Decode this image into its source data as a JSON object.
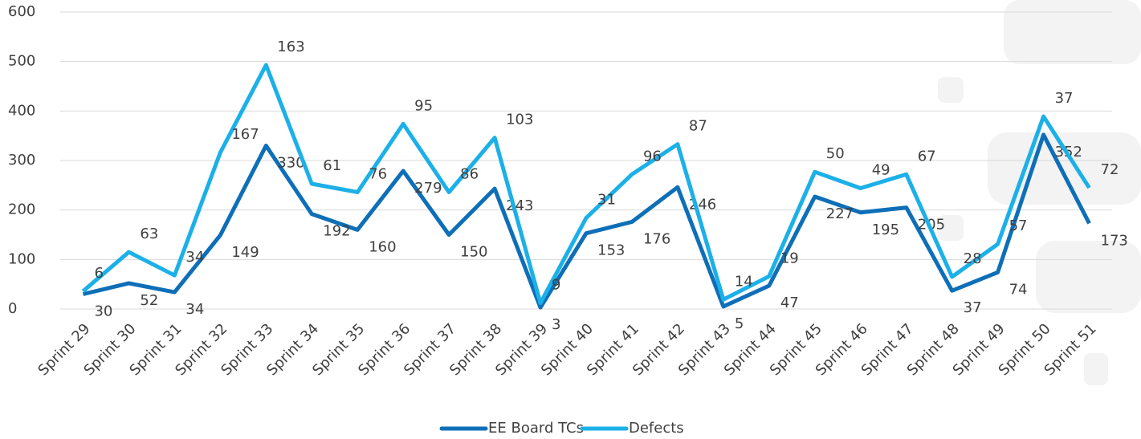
{
  "chart_data": {
    "type": "line",
    "stacked": true,
    "categories": [
      "Sprint 29",
      "Sprint 30",
      "Sprint 31",
      "Sprint 32",
      "Sprint 33",
      "Sprint 34",
      "Sprint 35",
      "Sprint 36",
      "Sprint 37",
      "Sprint 38",
      "Sprint 39",
      "Sprint 40",
      "Sprint 41",
      "Sprint 42",
      "Sprint 43",
      "Sprint 44",
      "Sprint 45",
      "Sprint 46",
      "Sprint 47",
      "Sprint 48",
      "Sprint 49",
      "Sprint 50",
      "Sprint 51"
    ],
    "series": [
      {
        "name": "EE Board TCs",
        "color": "#0e6fb8",
        "values": [
          30,
          52,
          34,
          149,
          330,
          192,
          160,
          279,
          150,
          243,
          3,
          153,
          176,
          246,
          5,
          47,
          227,
          195,
          205,
          37,
          74,
          352,
          173
        ]
      },
      {
        "name": "Defects",
        "color": "#1cb0e8",
        "values": [
          6,
          63,
          34,
          167,
          163,
          61,
          76,
          95,
          86,
          103,
          9,
          31,
          96,
          87,
          14,
          19,
          50,
          49,
          67,
          28,
          57,
          37,
          72
        ]
      }
    ],
    "ylim": [
      0,
      600
    ],
    "yticks": [
      0,
      100,
      200,
      300,
      400,
      500,
      600
    ],
    "grid": true,
    "legend": "bottom"
  }
}
